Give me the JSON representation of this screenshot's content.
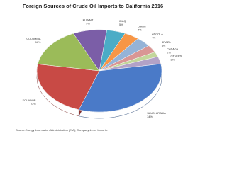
{
  "chart_data": {
    "type": "pie",
    "title": "Foreign Sources of Crude Oil Imports to California 2016",
    "categories": [
      "IRAQ",
      "OMAN",
      "ANGOLA",
      "BRAZIL",
      "CANADA",
      "OTHERS",
      "SAUDI ARABIA",
      "ECUADOR",
      "COLOMBIA",
      "KUWAIT"
    ],
    "values": [
      5,
      4,
      4,
      3,
      2,
      3,
      34,
      23,
      16,
      9
    ],
    "value_labels": [
      "5%",
      "4%",
      "4%",
      "3%",
      "2%",
      "3%",
      "34%",
      "23%",
      "16%",
      "9%"
    ],
    "colors": [
      "#4bacc6",
      "#f79646",
      "#95b3d7",
      "#d99694",
      "#c3d69b",
      "#b3a2c7",
      "#4a7ac8",
      "#c84a45",
      "#9bbb59",
      "#7b5ea7"
    ],
    "source": "Source:Energy Information Administration (EIA), Company-Level Imports."
  }
}
